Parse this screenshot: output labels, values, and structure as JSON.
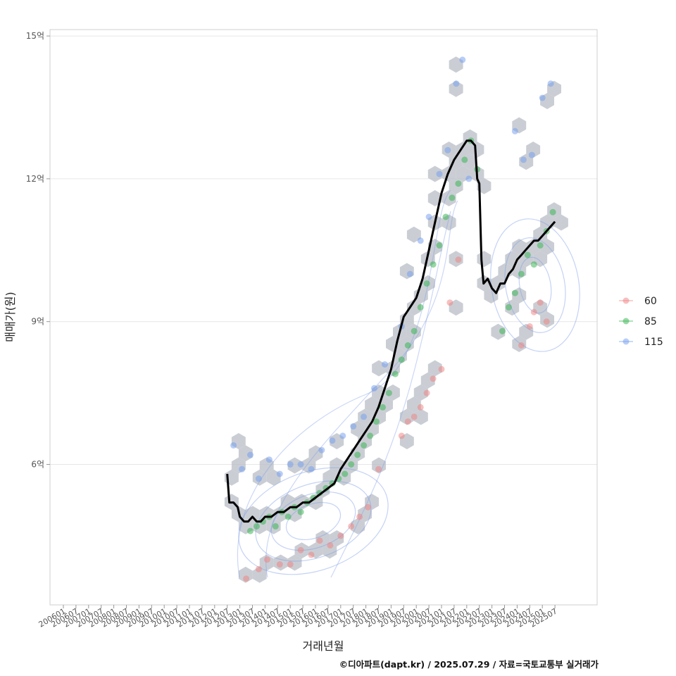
{
  "caption": "©디아파트(dapt.kr) / 2025.07.29 / 자료=국토교통부 실거래가",
  "chart_data": {
    "type": "scatter",
    "xlabel": "거래년월",
    "ylabel": "매매가(원)",
    "x_tick_labels": [
      "200601",
      "200607",
      "200701",
      "200707",
      "200801",
      "200807",
      "200901",
      "200907",
      "201001",
      "201007",
      "201101",
      "201107",
      "201201",
      "201207",
      "201301",
      "201307",
      "201401",
      "201407",
      "201501",
      "201507",
      "201601",
      "201607",
      "201701",
      "201707",
      "201801",
      "201807",
      "201901",
      "201907",
      "202001",
      "202007",
      "202101",
      "202107",
      "202201",
      "202207",
      "202301",
      "202307",
      "202401",
      "202407",
      "202501",
      "202507"
    ],
    "y_ticks": [
      6,
      9,
      12,
      15
    ],
    "y_tick_labels": [
      "6억",
      "9억",
      "12억",
      "15억"
    ],
    "ylim": [
      3.0,
      15.1
    ],
    "y_unit": "억",
    "grid": "horizontal",
    "legend_position": "right",
    "colors": {
      "60": "#f08080",
      "85": "#2db24a",
      "115": "#6f9cf0",
      "hex": "#b8bec6",
      "contour": "#7d9be8",
      "trend": "#000000"
    },
    "legend": [
      {
        "name": "60",
        "color": "#f08080"
      },
      {
        "name": "85",
        "color": "#2db24a"
      },
      {
        "name": "115",
        "color": "#6f9cf0"
      }
    ],
    "trend_line": {
      "x": [
        "2012-07",
        "2012-08",
        "2012-10",
        "2012-12",
        "2013-01",
        "2013-03",
        "2013-05",
        "2013-07",
        "2013-09",
        "2013-11",
        "2014-01",
        "2014-04",
        "2014-07",
        "2014-10",
        "2015-01",
        "2015-04",
        "2015-07",
        "2015-10",
        "2016-01",
        "2016-04",
        "2016-07",
        "2016-10",
        "2017-01",
        "2017-04",
        "2017-07",
        "2017-10",
        "2018-01",
        "2018-04",
        "2018-07",
        "2018-10",
        "2019-01",
        "2019-04",
        "2019-07",
        "2019-10",
        "2020-01",
        "2020-04",
        "2020-07",
        "2020-10",
        "2021-01",
        "2021-04",
        "2021-07",
        "2021-10",
        "2022-01",
        "2022-03",
        "2022-05",
        "2022-06",
        "2022-07",
        "2022-08",
        "2022-09",
        "2022-11",
        "2023-01",
        "2023-03",
        "2023-05",
        "2023-07",
        "2023-09",
        "2023-11",
        "2024-01",
        "2024-03",
        "2024-05",
        "2024-07",
        "2024-09",
        "2024-11",
        "2025-01",
        "2025-03",
        "2025-05",
        "2025-07"
      ],
      "y": [
        5.8,
        5.2,
        5.2,
        5.1,
        4.9,
        4.8,
        4.8,
        4.9,
        4.8,
        4.8,
        4.9,
        4.9,
        5.0,
        5.0,
        5.1,
        5.1,
        5.2,
        5.2,
        5.3,
        5.4,
        5.5,
        5.6,
        5.9,
        6.1,
        6.3,
        6.5,
        6.7,
        6.9,
        7.2,
        7.6,
        8.0,
        8.6,
        9.1,
        9.3,
        9.5,
        9.9,
        10.5,
        11.1,
        11.7,
        12.1,
        12.4,
        12.6,
        12.8,
        12.8,
        12.7,
        12.0,
        11.9,
        10.3,
        9.8,
        9.9,
        9.7,
        9.6,
        9.8,
        9.8,
        10.0,
        10.1,
        10.3,
        10.4,
        10.5,
        10.6,
        10.7,
        10.7,
        10.8,
        10.9,
        11.0,
        11.1
      ]
    },
    "series": [
      {
        "name": "60",
        "x": [
          "2013-04",
          "2013-10",
          "2014-02",
          "2014-08",
          "2015-01",
          "2015-06",
          "2015-11",
          "2016-03",
          "2016-08",
          "2017-01",
          "2017-06",
          "2017-10",
          "2018-02",
          "2018-07",
          "2019-06",
          "2019-09",
          "2019-12",
          "2020-03",
          "2020-06",
          "2020-09",
          "2021-01",
          "2021-05",
          "2021-09",
          "2024-03",
          "2024-07",
          "2024-09",
          "2024-12",
          "2025-03"
        ],
        "y": [
          3.6,
          3.8,
          4.0,
          3.9,
          3.9,
          4.2,
          4.1,
          4.4,
          4.3,
          4.5,
          4.7,
          4.9,
          5.1,
          5.9,
          6.6,
          6.9,
          7.0,
          7.2,
          7.5,
          7.8,
          8.0,
          9.4,
          10.3,
          8.5,
          8.9,
          9.2,
          9.4,
          9.0
        ]
      },
      {
        "name": "85",
        "x": [
          "2013-06",
          "2013-09",
          "2013-12",
          "2014-03",
          "2014-06",
          "2014-09",
          "2014-12",
          "2015-03",
          "2015-06",
          "2015-09",
          "2015-12",
          "2016-03",
          "2016-06",
          "2016-09",
          "2016-12",
          "2017-03",
          "2017-06",
          "2017-09",
          "2017-12",
          "2018-03",
          "2018-06",
          "2018-09",
          "2018-12",
          "2019-03",
          "2019-06",
          "2019-09",
          "2019-12",
          "2020-03",
          "2020-06",
          "2020-09",
          "2020-12",
          "2021-03",
          "2021-06",
          "2021-09",
          "2021-12",
          "2022-03",
          "2022-06",
          "2023-06",
          "2023-09",
          "2023-12",
          "2024-03",
          "2024-06",
          "2024-09",
          "2024-12",
          "2025-03",
          "2025-06"
        ],
        "y": [
          4.6,
          4.7,
          4.8,
          4.9,
          4.7,
          5.0,
          4.9,
          5.1,
          5.0,
          5.2,
          5.3,
          5.4,
          5.5,
          5.6,
          5.7,
          5.8,
          6.0,
          6.2,
          6.4,
          6.6,
          6.9,
          7.2,
          7.5,
          7.9,
          8.2,
          8.5,
          8.8,
          9.3,
          9.8,
          10.2,
          10.6,
          11.2,
          11.6,
          11.9,
          12.4,
          12.8,
          12.2,
          8.8,
          9.3,
          9.6,
          10.0,
          10.4,
          10.2,
          10.6,
          10.9,
          11.3
        ]
      },
      {
        "name": "115",
        "x": [
          "2012-10",
          "2013-02",
          "2013-06",
          "2013-10",
          "2014-03",
          "2014-08",
          "2015-01",
          "2015-06",
          "2015-11",
          "2016-04",
          "2016-09",
          "2017-02",
          "2017-07",
          "2017-12",
          "2018-05",
          "2018-10",
          "2019-06",
          "2019-10",
          "2020-03",
          "2020-07",
          "2020-12",
          "2021-04",
          "2021-08",
          "2021-11",
          "2022-02",
          "2023-12",
          "2024-04",
          "2024-08",
          "2025-01",
          "2025-05"
        ],
        "y": [
          6.4,
          5.9,
          6.2,
          5.7,
          6.1,
          5.8,
          6.0,
          6.0,
          5.9,
          6.3,
          6.5,
          6.6,
          6.8,
          7.0,
          7.6,
          8.1,
          8.9,
          10.0,
          10.7,
          11.2,
          12.1,
          12.6,
          14.0,
          14.5,
          12.0,
          13.0,
          12.4,
          12.5,
          13.7,
          14.0
        ]
      }
    ]
  }
}
